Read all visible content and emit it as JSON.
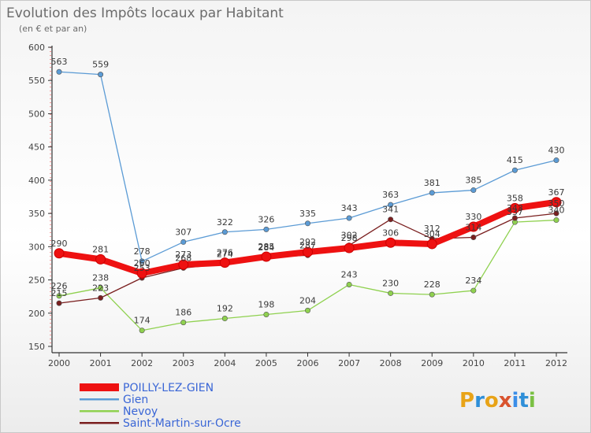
{
  "chart_data": {
    "type": "line",
    "title": "Evolution des Impôts locaux par Habitant",
    "subtitle": "(en € et par an)",
    "x": [
      "2000",
      "2001",
      "2002",
      "2003",
      "2004",
      "2005",
      "2006",
      "2007",
      "2008",
      "2009",
      "2010",
      "2011",
      "2012"
    ],
    "ylim": [
      150,
      600
    ],
    "yticks": [
      150,
      200,
      250,
      300,
      350,
      400,
      450,
      500,
      550,
      600
    ],
    "grid": false,
    "legend_position": "bottom-left",
    "series": [
      {
        "name": "Gien",
        "color": "#5b9bd5",
        "values": [
          563,
          559,
          278,
          307,
          322,
          326,
          335,
          343,
          363,
          381,
          385,
          415,
          430
        ]
      },
      {
        "name": "Nevoy",
        "color": "#8fd14f",
        "values": [
          226,
          238,
          174,
          186,
          192,
          198,
          204,
          243,
          230,
          228,
          234,
          337,
          340
        ]
      },
      {
        "name": "Saint-Martin-sur-Ocre",
        "color": "#7a1f1f",
        "values": [
          215,
          223,
          253,
          268,
          274,
          284,
          287,
          302,
          341,
          312,
          314,
          343,
          350
        ]
      },
      {
        "name": "POILLY-LEZ-GIEN",
        "color": "#ee1111",
        "values": [
          290,
          281,
          260,
          273,
          276,
          285,
          292,
          298,
          306,
          304,
          330,
          358,
          367
        ]
      }
    ]
  },
  "legend": {
    "items": [
      {
        "name": "POILLY-LEZ-GIEN",
        "color": "#ee1111",
        "text_color": "#3a66d6"
      },
      {
        "name": "Gien",
        "color": "#5b9bd5",
        "text_color": "#3a66d6"
      },
      {
        "name": "Nevoy",
        "color": "#8fd14f",
        "text_color": "#3a66d6"
      },
      {
        "name": "Saint-Martin-sur-Ocre",
        "color": "#7a1f1f",
        "text_color": "#3a66d6"
      }
    ]
  },
  "logo": {
    "text": "Proxiti"
  }
}
